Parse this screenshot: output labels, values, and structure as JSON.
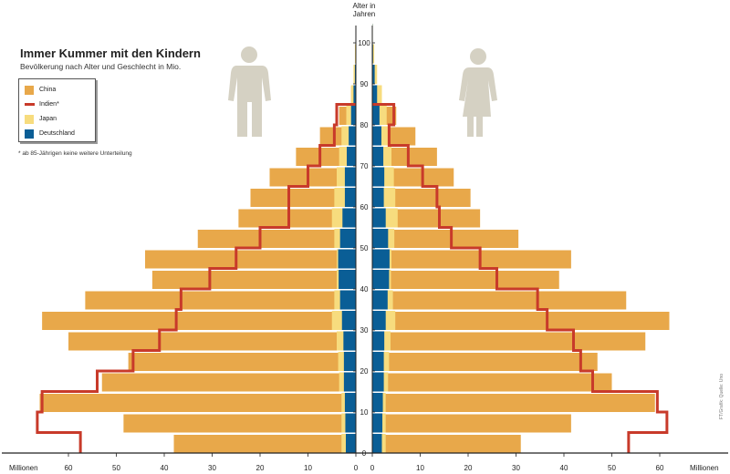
{
  "title": "Immer Kummer mit den Kindern",
  "subtitle": "Bevölkerung nach Alter und Geschlecht in Mio.",
  "footnote": "* ab 85-Jährigen keine weitere Unterteilung",
  "credit": "FT/Grafik: Quelle: Uno",
  "legend": [
    {
      "name": "China",
      "color": "#e8a84a",
      "kind": "box"
    },
    {
      "name": "Indien*",
      "color": "#c83a2a",
      "kind": "line"
    },
    {
      "name": "Japan",
      "color": "#f7dc7e",
      "kind": "box"
    },
    {
      "name": "Deutschland",
      "color": "#0a5e96",
      "kind": "box"
    }
  ],
  "chart_data": {
    "type": "bar",
    "title": "Immer Kummer mit den Kindern",
    "subtitle": "Bevölkerung nach Alter und Geschlecht in Mio.",
    "ylabel": "Alter in Jahren",
    "xlabel_left": "Millionen",
    "xlabel_right": "Millionen",
    "x_ticks": [
      60,
      50,
      40,
      30,
      20,
      10,
      0
    ],
    "y_ticks": [
      0,
      10,
      20,
      30,
      40,
      50,
      60,
      70,
      80,
      90,
      100
    ],
    "xlim": [
      0,
      70
    ],
    "ylim": [
      0,
      100
    ],
    "age_groups": [
      "0-4",
      "5-9",
      "10-14",
      "15-19",
      "20-24",
      "25-29",
      "30-34",
      "35-39",
      "40-44",
      "45-49",
      "50-54",
      "55-59",
      "60-64",
      "65-69",
      "70-74",
      "75-79",
      "80-84",
      "85-89",
      "90-94",
      "95-99",
      "100+"
    ],
    "series": [
      {
        "name": "China",
        "color": "#e8a84a",
        "male": [
          38,
          48.5,
          66,
          53,
          47.5,
          60,
          65.5,
          56.5,
          42.5,
          44,
          33,
          24.5,
          22,
          18,
          12.5,
          7.5,
          3.5,
          1,
          0.3,
          0.1,
          0
        ],
        "female": [
          31,
          41.5,
          59,
          50,
          47,
          57,
          62,
          53,
          39,
          41.5,
          30.5,
          22.5,
          20.5,
          17,
          13.5,
          9,
          5,
          2,
          0.6,
          0.2,
          0
        ]
      },
      {
        "name": "Indien*",
        "color": "#c83a2a",
        "male": [
          57.5,
          66.5,
          65.5,
          54,
          46.5,
          41,
          37.5,
          36.5,
          30.5,
          25,
          20,
          14,
          14,
          10,
          7.5,
          4.5,
          4
        ],
        "female": [
          53.5,
          61.5,
          59.5,
          46,
          43.5,
          42,
          36.5,
          34.5,
          26,
          22.5,
          16.5,
          14,
          13.5,
          10.5,
          7.5,
          3.5,
          4.5
        ]
      },
      {
        "name": "Japan",
        "color": "#f7dc7e",
        "male": [
          3,
          3,
          3,
          3.5,
          3.7,
          4,
          5,
          4.5,
          4,
          4,
          4.5,
          5,
          4.5,
          4,
          3.5,
          3,
          2,
          1,
          0.5,
          0.2,
          0
        ],
        "female": [
          2.8,
          2.8,
          2.8,
          3.3,
          3.5,
          3.8,
          4.8,
          4.3,
          3.9,
          4,
          4.6,
          5.3,
          4.8,
          4.5,
          4,
          3.5,
          3,
          2,
          1,
          0.4,
          0.1
        ]
      },
      {
        "name": "Deutschland",
        "color": "#0a5e96",
        "male": [
          2.1,
          2.2,
          2.3,
          2.5,
          2.5,
          2.6,
          2.9,
          3.3,
          3.6,
          3.7,
          3.3,
          2.8,
          2.3,
          2.3,
          1.9,
          1.5,
          1,
          0.5,
          0.2,
          0.05,
          0
        ],
        "female": [
          2,
          2.1,
          2.2,
          2.4,
          2.4,
          2.5,
          2.8,
          3.2,
          3.5,
          3.6,
          3.3,
          2.8,
          2.4,
          2.5,
          2.3,
          1.9,
          1.5,
          1,
          0.5,
          0.15,
          0.05
        ]
      }
    ]
  }
}
